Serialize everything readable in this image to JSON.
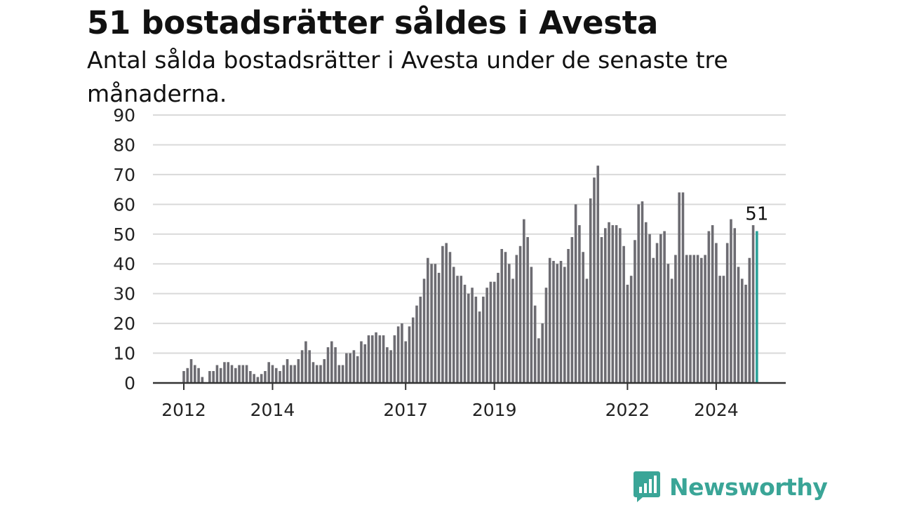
{
  "header": {
    "title": "51 bostadsrätter såldes i Avesta",
    "subtitle": "Antal sålda bostadsrätter i Avesta under de senaste tre månaderna."
  },
  "brand": {
    "name": "Newsworthy"
  },
  "colors": {
    "bar": "#6d6c72",
    "highlight": "#2ba199",
    "grid": "#d9d9d9",
    "axis": "#333333",
    "brand": "#3aa597"
  },
  "chart_data": {
    "type": "bar",
    "ylim": [
      0,
      90
    ],
    "yticks": [
      0,
      10,
      20,
      30,
      40,
      50,
      60,
      70,
      80,
      90
    ],
    "xticks": [
      "2012",
      "2014",
      "2017",
      "2019",
      "2022",
      "2024"
    ],
    "highlight_label": "51",
    "grid": true,
    "values": [
      4,
      5,
      8,
      6,
      5,
      2,
      0,
      4,
      4,
      6,
      5,
      7,
      7,
      6,
      5,
      6,
      6,
      6,
      4,
      3,
      2,
      3,
      4,
      7,
      6,
      5,
      4,
      6,
      8,
      6,
      6,
      8,
      11,
      14,
      11,
      7,
      6,
      6,
      8,
      12,
      14,
      12,
      6,
      6,
      10,
      10,
      11,
      9,
      14,
      13,
      16,
      16,
      17,
      16,
      16,
      12,
      11,
      16,
      19,
      20,
      14,
      19,
      22,
      26,
      29,
      35,
      42,
      40,
      40,
      37,
      46,
      47,
      44,
      39,
      36,
      36,
      33,
      30,
      32,
      29,
      24,
      29,
      32,
      34,
      34,
      37,
      45,
      44,
      40,
      35,
      43,
      46,
      55,
      49,
      39,
      26,
      15,
      20,
      32,
      42,
      41,
      40,
      41,
      39,
      45,
      49,
      60,
      53,
      44,
      35,
      62,
      69,
      73,
      49,
      52,
      54,
      53,
      53,
      52,
      46,
      33,
      36,
      48,
      60,
      61,
      54,
      50,
      42,
      47,
      50,
      51,
      40,
      35,
      43,
      64,
      64,
      43,
      43,
      43,
      43,
      42,
      43,
      51,
      53,
      47,
      36,
      36,
      47,
      55,
      52,
      39,
      35,
      33,
      42,
      53,
      51
    ]
  }
}
